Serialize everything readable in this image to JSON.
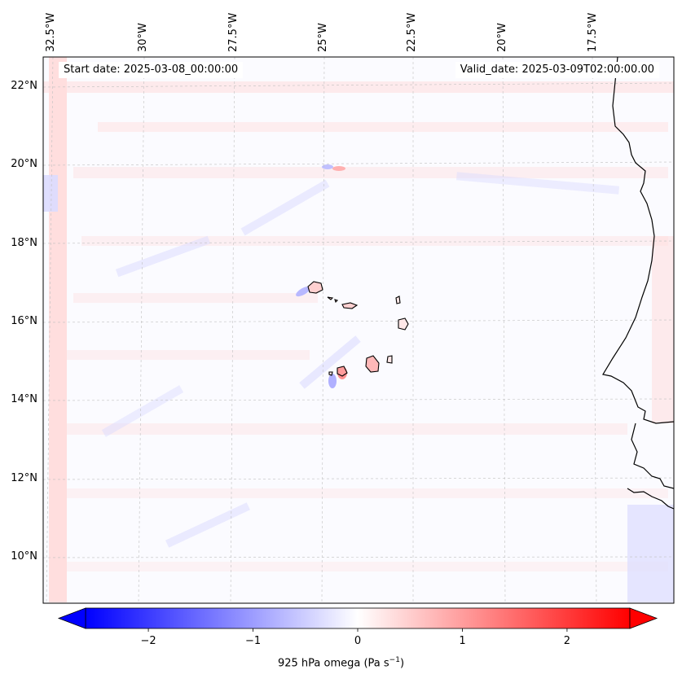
{
  "map": {
    "start_date_label": "Start date: 2025-03-08_00:00:00",
    "valid_date_label": "Valid_date: 2025-03-09T02:00:00.00",
    "longitude_labels": [
      "32.5°W",
      "30°W",
      "27.5°W",
      "25°W",
      "22.5°W",
      "20°W",
      "17.5°W"
    ],
    "latitude_labels": [
      "22°N",
      "20°N",
      "18°N",
      "16°N",
      "14°N",
      "12°N",
      "10°N"
    ],
    "extent": {
      "lon_min": -33,
      "lon_max": -16.5,
      "lat_min": 9,
      "lat_max": 22.8
    },
    "field": "925 hPa omega",
    "units": "Pa s⁻¹",
    "colorbar": {
      "label_text": "925 hPa omega (Pa s",
      "label_sup": "−1",
      "label_close": ")",
      "ticks": [
        "−2",
        "−1",
        "0",
        "1",
        "2"
      ],
      "tick_values": [
        -2,
        -1,
        0,
        1,
        2
      ],
      "range": [
        -2.6,
        2.6
      ],
      "colormap": "bwr",
      "extend": "both"
    },
    "colors": {
      "negative": "#0000ff",
      "zero": "#ffffff",
      "positive": "#ff0000",
      "coast": "#000000",
      "grid": "#b0b0b0"
    }
  }
}
